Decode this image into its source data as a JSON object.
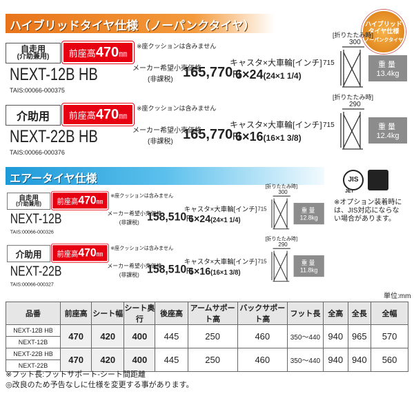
{
  "header_badge": {
    "line1": "ハイブリッドタイヤ仕様",
    "line2": "ノーパンクタイヤ"
  },
  "sections": [
    {
      "title": "ハイブリッドタイヤ仕様（ノーパンクタイヤ）",
      "products": [
        {
          "use": [
            "自走用",
            "(介助兼用)"
          ],
          "seat_label": "前座高",
          "seat_height": "470",
          "seat_unit": "㎜",
          "cushion_note": "※座クッションは含みません",
          "model": "NEXT-12B HB",
          "price_label": [
            "メーカー希望小売価格",
            "(非課税)"
          ],
          "price": "165,770",
          "price_unit": "円",
          "wheel_label": "キャスタ×大車輪[インチ]",
          "wheel_size": "6×24",
          "wheel_detail": "(24×1 1/4)",
          "tais": "TAIS:00066-000375",
          "folded_label": "[折りたたみ時]",
          "folded_width": "300",
          "folded_height": "715",
          "weight_label": "重量",
          "weight": "13.4kg"
        },
        {
          "use": [
            "介助用"
          ],
          "seat_label": "前座高",
          "seat_height": "470",
          "seat_unit": "㎜",
          "cushion_note": "※座クッションは含みません",
          "model": "NEXT-22B HB",
          "price_label": [
            "メーカー希望小売価格",
            "(非課税)"
          ],
          "price": "165,770",
          "price_unit": "円",
          "wheel_label": "キャスタ×大車輪[インチ]",
          "wheel_size": "6×16",
          "wheel_detail": "(16×1 3/8)",
          "tais": "TAIS:00066-000376",
          "folded_label": "[折りたたみ時]",
          "folded_width": "290",
          "folded_height": "715",
          "weight_label": "重量",
          "weight": "12.4kg"
        }
      ]
    },
    {
      "title": "エアータイヤ仕様",
      "products": [
        {
          "use": [
            "自走用",
            "(介助兼用)"
          ],
          "seat_label": "前座高",
          "seat_height": "470",
          "seat_unit": "㎜",
          "cushion_note": "※座クッションは含みません",
          "model": "NEXT-12B",
          "price_label": [
            "メーカー希望小売価格",
            "(非課税)"
          ],
          "price": "158,510",
          "price_unit": "円",
          "wheel_label": "キャスタ×大車輪[インチ]",
          "wheel_size": "6×24",
          "wheel_detail": "(24×1 1/4)",
          "tais": "TAIS:00066-000326",
          "folded_label": "[折りたたみ時]",
          "folded_width": "300",
          "folded_height": "715",
          "weight_label": "重量",
          "weight": "12.8kg"
        },
        {
          "use": [
            "介助用"
          ],
          "seat_label": "前座高",
          "seat_height": "470",
          "seat_unit": "㎜",
          "cushion_note": "※座クッションは含みません",
          "model": "NEXT-22B",
          "price_label": [
            "メーカー希望小売価格",
            "(非課税)"
          ],
          "price": "158,510",
          "price_unit": "円",
          "wheel_label": "キャスタ×大車輪[インチ]",
          "wheel_size": "6×16",
          "wheel_detail": "(16×1 3/8)",
          "tais": "TAIS:00066-000327",
          "folded_label": "[折りたたみ時]",
          "folded_width": "290",
          "folded_height": "715",
          "weight_label": "重量",
          "weight": "11.8kg"
        }
      ]
    }
  ],
  "jis_mark": {
    "jis": "JIS",
    "jet": "JET"
  },
  "option_note": "※オプション装着時には、JIS対応にならない場合があります。",
  "unit": "単位:mm",
  "table": {
    "header": [
      "品番",
      "前座高",
      "シート幅",
      "シート奥行",
      "後座高",
      "アームサポート高",
      "バックサポート高",
      "フット長",
      "全高",
      "全長",
      "全幅"
    ],
    "rows": [
      {
        "models": [
          "NEXT-12B HB",
          "NEXT-12B"
        ],
        "values": [
          "470",
          "420",
          "400",
          "445",
          "250",
          "460",
          "350〜440",
          "940",
          "965",
          "570"
        ]
      },
      {
        "models": [
          "NEXT-22B HB",
          "NEXT-22B"
        ],
        "values": [
          "470",
          "420",
          "400",
          "445",
          "250",
          "460",
          "350〜440",
          "940",
          "940",
          "560"
        ]
      }
    ]
  },
  "footnotes": [
    "※フット長:フットサポート-シート間距離",
    "◎改良のため予告なしに仕様を変更する事があります。"
  ]
}
